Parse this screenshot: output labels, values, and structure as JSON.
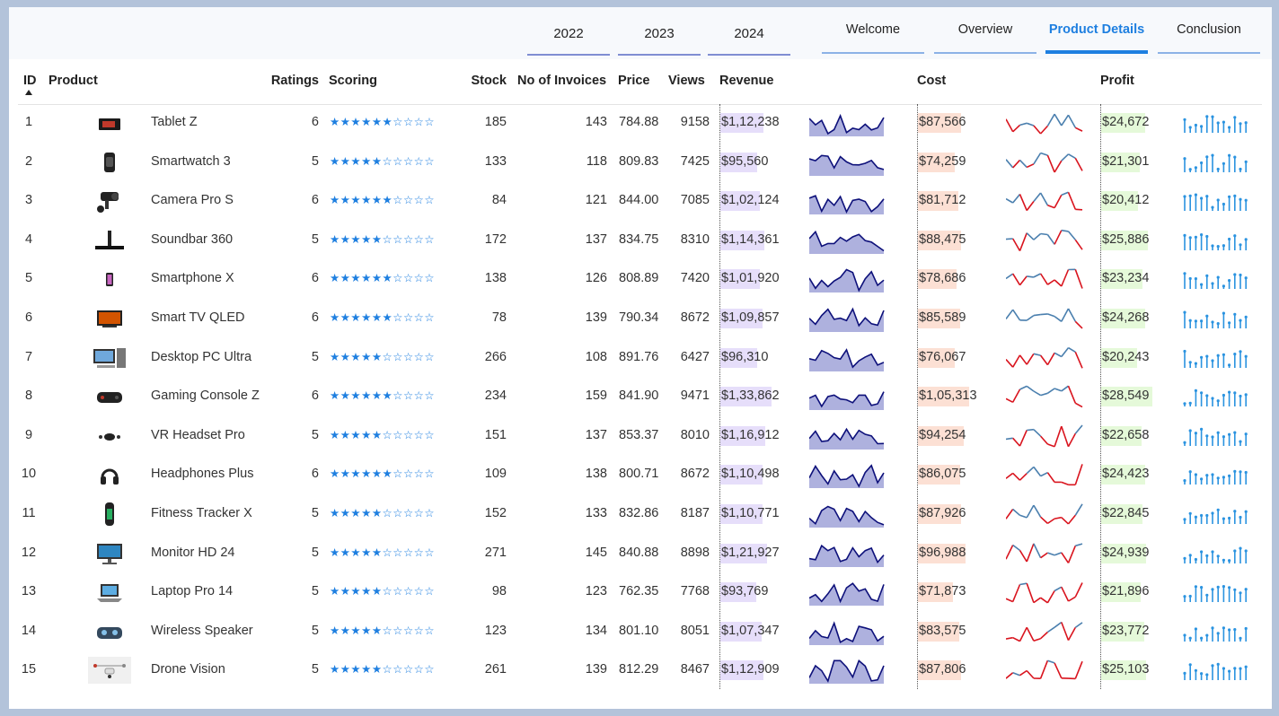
{
  "years": [
    "2022",
    "2023",
    "2024"
  ],
  "nav": [
    {
      "label": "Welcome",
      "active": false
    },
    {
      "label": "Overview",
      "active": false
    },
    {
      "label": "Product Details",
      "active": true
    },
    {
      "label": "Conclusion",
      "active": false
    }
  ],
  "columns": {
    "id": "ID",
    "product": "Product",
    "ratings": "Ratings",
    "scoring": "Scoring",
    "stock": "Stock",
    "invoices": "No of Invoices",
    "price": "Price",
    "views": "Views",
    "revenue": "Revenue",
    "cost": "Cost",
    "profit": "Profit"
  },
  "colors": {
    "accent": "#1e7fe0",
    "revenue_bar": "#e6defa",
    "cost_bar": "#fce0d4",
    "profit_bar": "#e5f9d9",
    "revenue_area_fill": "#aeb1de",
    "revenue_area_line": "#0d107a",
    "cost_line": "#4a7fae",
    "cost_line_low": "#d9141e",
    "profit_column": "#2a93e0"
  },
  "rows": [
    {
      "id": "1",
      "product": "Tablet Z",
      "icon": "tablet-icon",
      "ratings": "6",
      "stock": "185",
      "invoices": "143",
      "price": "784.88",
      "views": "9158",
      "revenue": "$1,12,238",
      "cost": "$87,566",
      "profit": "$24,672",
      "rating_value": 6
    },
    {
      "id": "2",
      "product": "Smartwatch 3",
      "icon": "smartwatch-icon",
      "ratings": "5",
      "stock": "133",
      "invoices": "118",
      "price": "809.83",
      "views": "7425",
      "revenue": "$95,560",
      "cost": "$74,259",
      "profit": "$21,301",
      "rating_value": 5
    },
    {
      "id": "3",
      "product": "Camera Pro S",
      "icon": "camera-icon",
      "ratings": "6",
      "stock": "84",
      "invoices": "121",
      "price": "844.00",
      "views": "7085",
      "revenue": "$1,02,124",
      "cost": "$81,712",
      "profit": "$20,412",
      "rating_value": 6
    },
    {
      "id": "4",
      "product": "Soundbar 360",
      "icon": "soundbar-icon",
      "ratings": "5",
      "stock": "172",
      "invoices": "137",
      "price": "834.75",
      "views": "8310",
      "revenue": "$1,14,361",
      "cost": "$88,475",
      "profit": "$25,886",
      "rating_value": 5
    },
    {
      "id": "5",
      "product": "Smartphone X",
      "icon": "smartphone-icon",
      "ratings": "6",
      "stock": "138",
      "invoices": "126",
      "price": "808.89",
      "views": "7420",
      "revenue": "$1,01,920",
      "cost": "$78,686",
      "profit": "$23,234",
      "rating_value": 6
    },
    {
      "id": "6",
      "product": "Smart TV QLED",
      "icon": "tv-icon",
      "ratings": "6",
      "stock": "78",
      "invoices": "139",
      "price": "790.34",
      "views": "8672",
      "revenue": "$1,09,857",
      "cost": "$85,589",
      "profit": "$24,268",
      "rating_value": 6
    },
    {
      "id": "7",
      "product": "Desktop PC Ultra",
      "icon": "desktop-pc-icon",
      "ratings": "5",
      "stock": "266",
      "invoices": "108",
      "price": "891.76",
      "views": "6427",
      "revenue": "$96,310",
      "cost": "$76,067",
      "profit": "$20,243",
      "rating_value": 5
    },
    {
      "id": "8",
      "product": "Gaming Console Z",
      "icon": "game-console-icon",
      "ratings": "6",
      "stock": "234",
      "invoices": "159",
      "price": "841.90",
      "views": "9471",
      "revenue": "$1,33,862",
      "cost": "$1,05,313",
      "profit": "$28,549",
      "rating_value": 6
    },
    {
      "id": "9",
      "product": "VR Headset Pro",
      "icon": "vr-headset-icon",
      "ratings": "5",
      "stock": "151",
      "invoices": "137",
      "price": "853.37",
      "views": "8010",
      "revenue": "$1,16,912",
      "cost": "$94,254",
      "profit": "$22,658",
      "rating_value": 5
    },
    {
      "id": "10",
      "product": "Headphones Plus",
      "icon": "headphones-icon",
      "ratings": "6",
      "stock": "109",
      "invoices": "138",
      "price": "800.71",
      "views": "8672",
      "revenue": "$1,10,498",
      "cost": "$86,075",
      "profit": "$24,423",
      "rating_value": 6
    },
    {
      "id": "11",
      "product": "Fitness Tracker X",
      "icon": "fitness-tracker-icon",
      "ratings": "5",
      "stock": "152",
      "invoices": "133",
      "price": "832.86",
      "views": "8187",
      "revenue": "$1,10,771",
      "cost": "$87,926",
      "profit": "$22,845",
      "rating_value": 5
    },
    {
      "id": "12",
      "product": "Monitor HD 24",
      "icon": "monitor-icon",
      "ratings": "5",
      "stock": "271",
      "invoices": "145",
      "price": "840.88",
      "views": "8898",
      "revenue": "$1,21,927",
      "cost": "$96,988",
      "profit": "$24,939",
      "rating_value": 5
    },
    {
      "id": "13",
      "product": "Laptop Pro 14",
      "icon": "laptop-icon",
      "ratings": "5",
      "stock": "98",
      "invoices": "123",
      "price": "762.35",
      "views": "7768",
      "revenue": "$93,769",
      "cost": "$71,873",
      "profit": "$21,896",
      "rating_value": 5
    },
    {
      "id": "14",
      "product": "Wireless Speaker",
      "icon": "speaker-icon",
      "ratings": "5",
      "stock": "123",
      "invoices": "134",
      "price": "801.10",
      "views": "8051",
      "revenue": "$1,07,347",
      "cost": "$83,575",
      "profit": "$23,772",
      "rating_value": 5
    },
    {
      "id": "15",
      "product": "Drone Vision",
      "icon": "drone-icon",
      "ratings": "5",
      "stock": "261",
      "invoices": "139",
      "price": "812.29",
      "views": "8467",
      "revenue": "$1,12,909",
      "cost": "$87,806",
      "profit": "$25,103",
      "rating_value": 5
    }
  ]
}
